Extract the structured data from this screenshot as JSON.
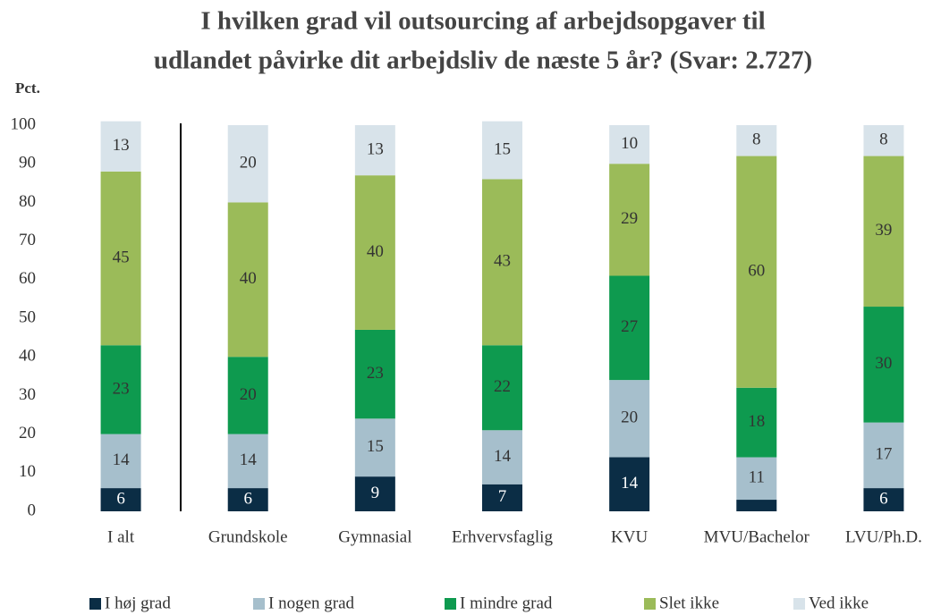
{
  "chart_data": {
    "type": "stacked_bar",
    "title": [
      "I hvilken grad vil outsourcing af arbejdsopgaver til",
      "udlandet påvirke dit arbejdsliv de næste 5 år? (Svar: 2.727)"
    ],
    "ylabel": "Pct.",
    "categories": [
      "I alt",
      "Grundskole",
      "Gymnasial",
      "Erhvervsfaglig",
      "KVU",
      "MVU/Bachelor",
      "LVU/Ph.D."
    ],
    "series": [
      {
        "name": "I høj grad",
        "color": "#0b2d45",
        "values": [
          6,
          6,
          9,
          7,
          14,
          3,
          6
        ]
      },
      {
        "name": "I nogen grad",
        "color": "#a6bfcc",
        "values": [
          14,
          14,
          15,
          14,
          20,
          11,
          17
        ]
      },
      {
        "name": "I mindre grad",
        "color": "#0e9a4f",
        "values": [
          23,
          20,
          23,
          22,
          27,
          18,
          30
        ]
      },
      {
        "name": "Slet ikke",
        "color": "#9bbb59",
        "values": [
          45,
          40,
          40,
          43,
          29,
          60,
          39
        ]
      },
      {
        "name": "Ved ikke",
        "color": "#d8e3ea",
        "values": [
          13,
          20,
          13,
          15,
          10,
          8,
          8
        ]
      }
    ],
    "ylim": [
      0,
      100
    ],
    "yticks": [
      0,
      10,
      20,
      30,
      40,
      50,
      60,
      70,
      80,
      90,
      100
    ],
    "grid": false
  }
}
